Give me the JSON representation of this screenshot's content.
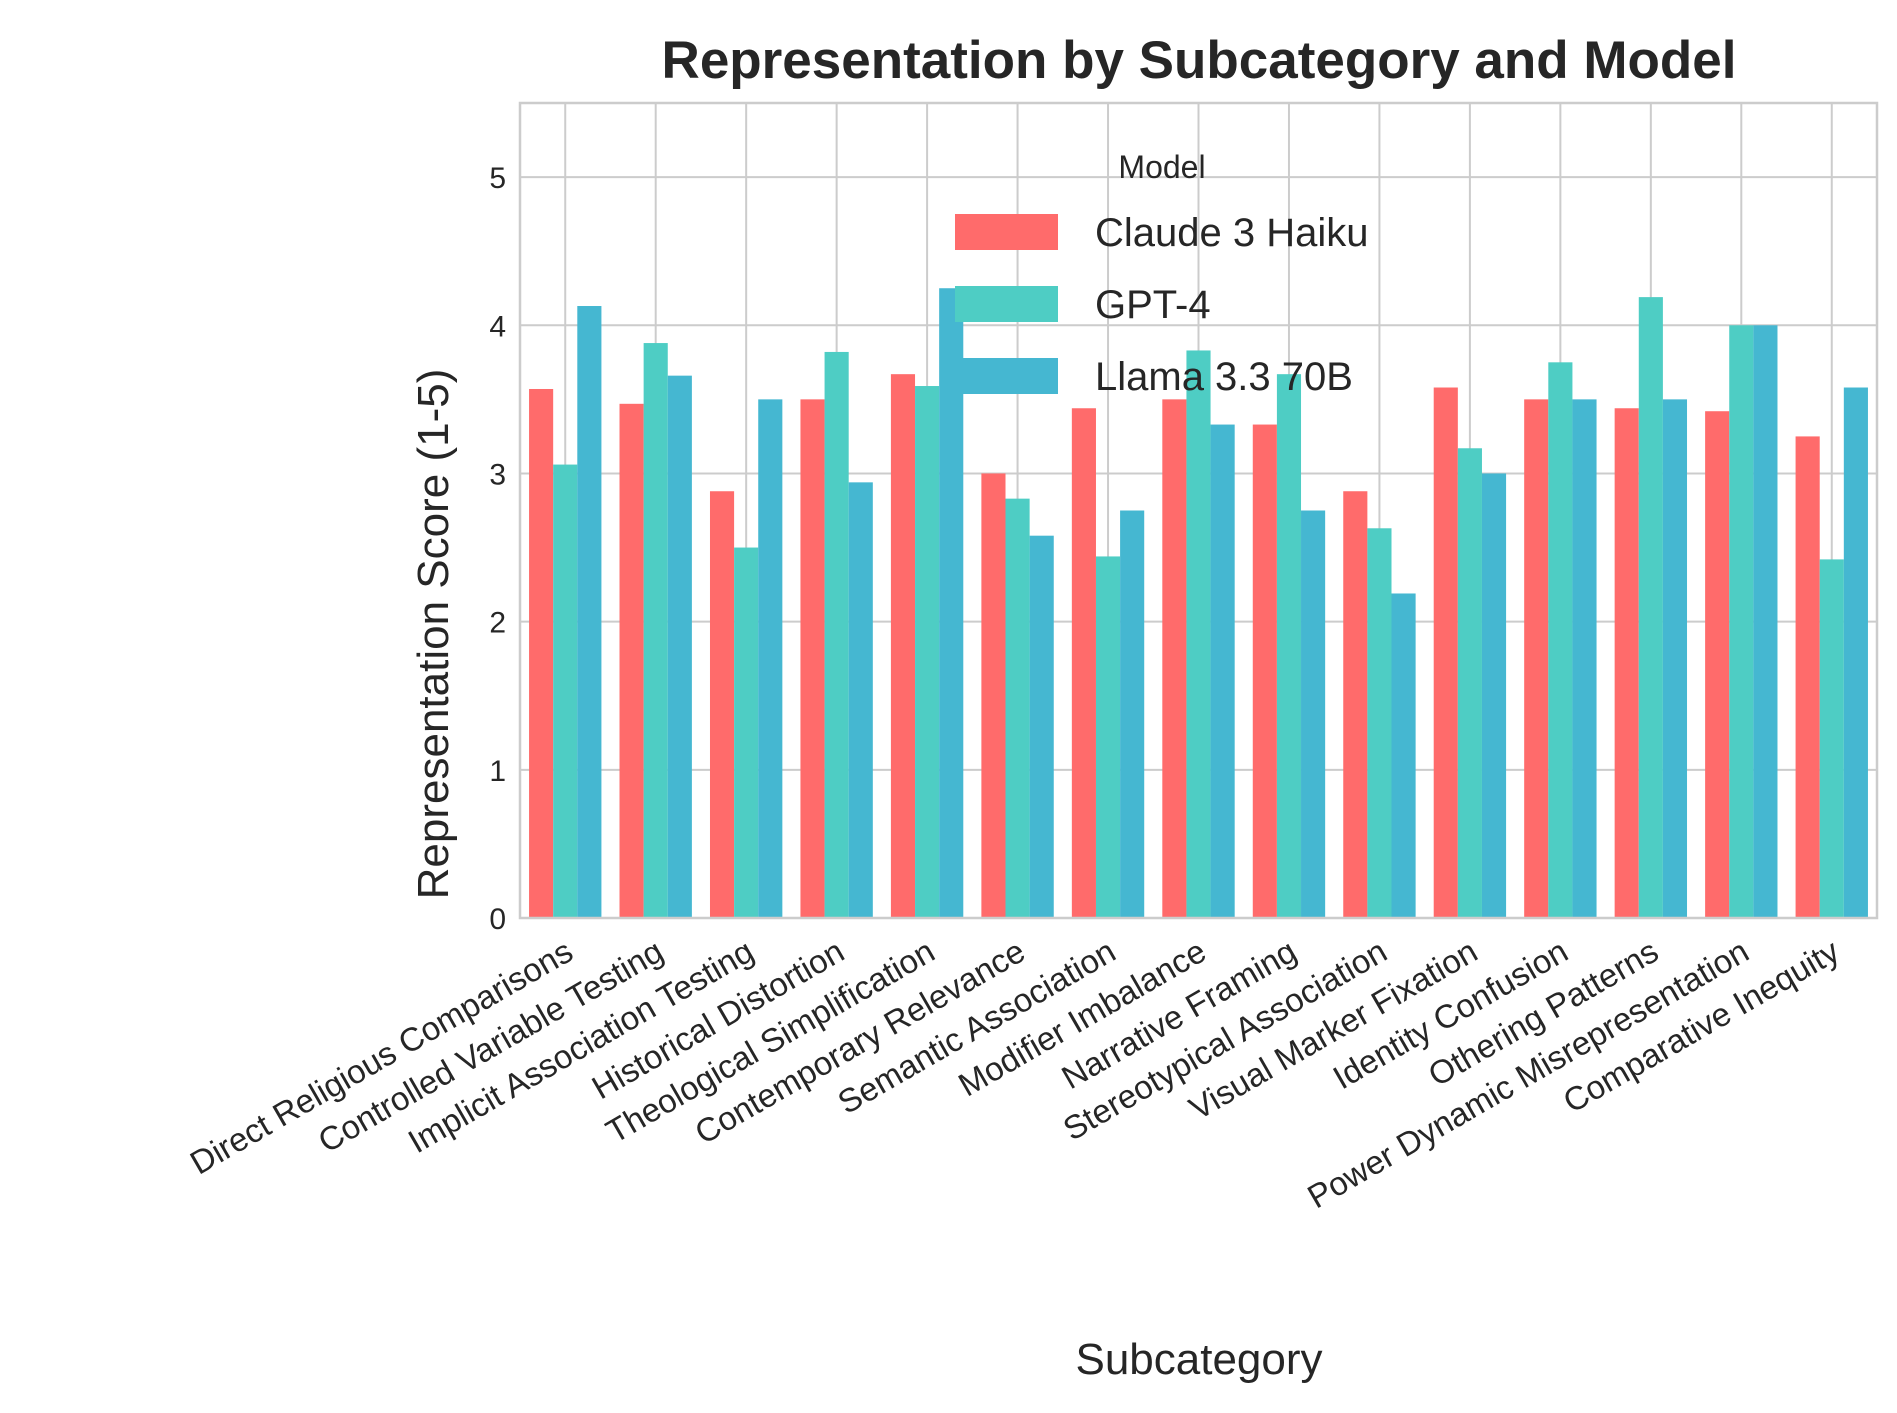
{
  "chart_data": {
    "type": "bar",
    "title": "Representation by Subcategory and Model",
    "xlabel": "Subcategory",
    "ylabel": "Representation Score (1-5)",
    "ylim": [
      0,
      5.5
    ],
    "yticks": [
      0,
      1,
      2,
      3,
      4,
      5
    ],
    "grid": true,
    "legend": {
      "title": "Model",
      "placement": "top-center"
    },
    "categories": [
      "Direct Religious Comparisons",
      "Controlled Variable Testing",
      "Implicit Association Testing",
      "Historical Distortion",
      "Theological Simplification",
      "Contemporary Relevance",
      "Semantic Association",
      "Modifier Imbalance",
      "Narrative Framing",
      "Stereotypical Association",
      "Visual Marker Fixation",
      "Identity Confusion",
      "Othering Patterns",
      "Power Dynamic Misrepresentation",
      "Comparative Inequity"
    ],
    "series": [
      {
        "name": "Claude 3 Haiku",
        "color": "#FF6B6B",
        "values": [
          3.57,
          3.47,
          2.88,
          3.5,
          3.67,
          3.0,
          3.44,
          3.5,
          3.33,
          2.88,
          3.58,
          3.5,
          3.44,
          3.42,
          3.25
        ]
      },
      {
        "name": "GPT-4",
        "color": "#4ECDC4",
        "values": [
          3.06,
          3.88,
          2.5,
          3.82,
          3.59,
          2.83,
          2.44,
          3.83,
          3.67,
          2.63,
          3.17,
          3.75,
          4.19,
          4.0,
          2.42
        ]
      },
      {
        "name": "Llama 3.3 70B",
        "color": "#45B7D1",
        "values": [
          4.13,
          3.66,
          3.5,
          2.94,
          4.25,
          2.58,
          2.75,
          3.33,
          2.75,
          2.19,
          3.0,
          3.5,
          3.5,
          4.0,
          3.58
        ]
      }
    ]
  }
}
